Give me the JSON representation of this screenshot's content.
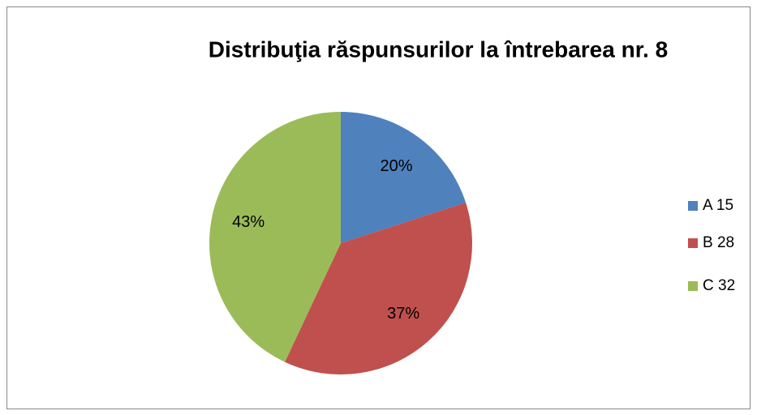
{
  "chart_data": {
    "type": "pie",
    "title": "Distribuţia răspunsurilor la întrebarea nr. 8",
    "categories": [
      "A 15",
      "B 28",
      "C 32"
    ],
    "values": [
      20,
      37,
      43
    ],
    "value_labels": [
      "20%",
      "37%",
      "43%"
    ],
    "colors": [
      "#4f81bd",
      "#c0504d",
      "#9bbb59"
    ],
    "legend": "right"
  }
}
